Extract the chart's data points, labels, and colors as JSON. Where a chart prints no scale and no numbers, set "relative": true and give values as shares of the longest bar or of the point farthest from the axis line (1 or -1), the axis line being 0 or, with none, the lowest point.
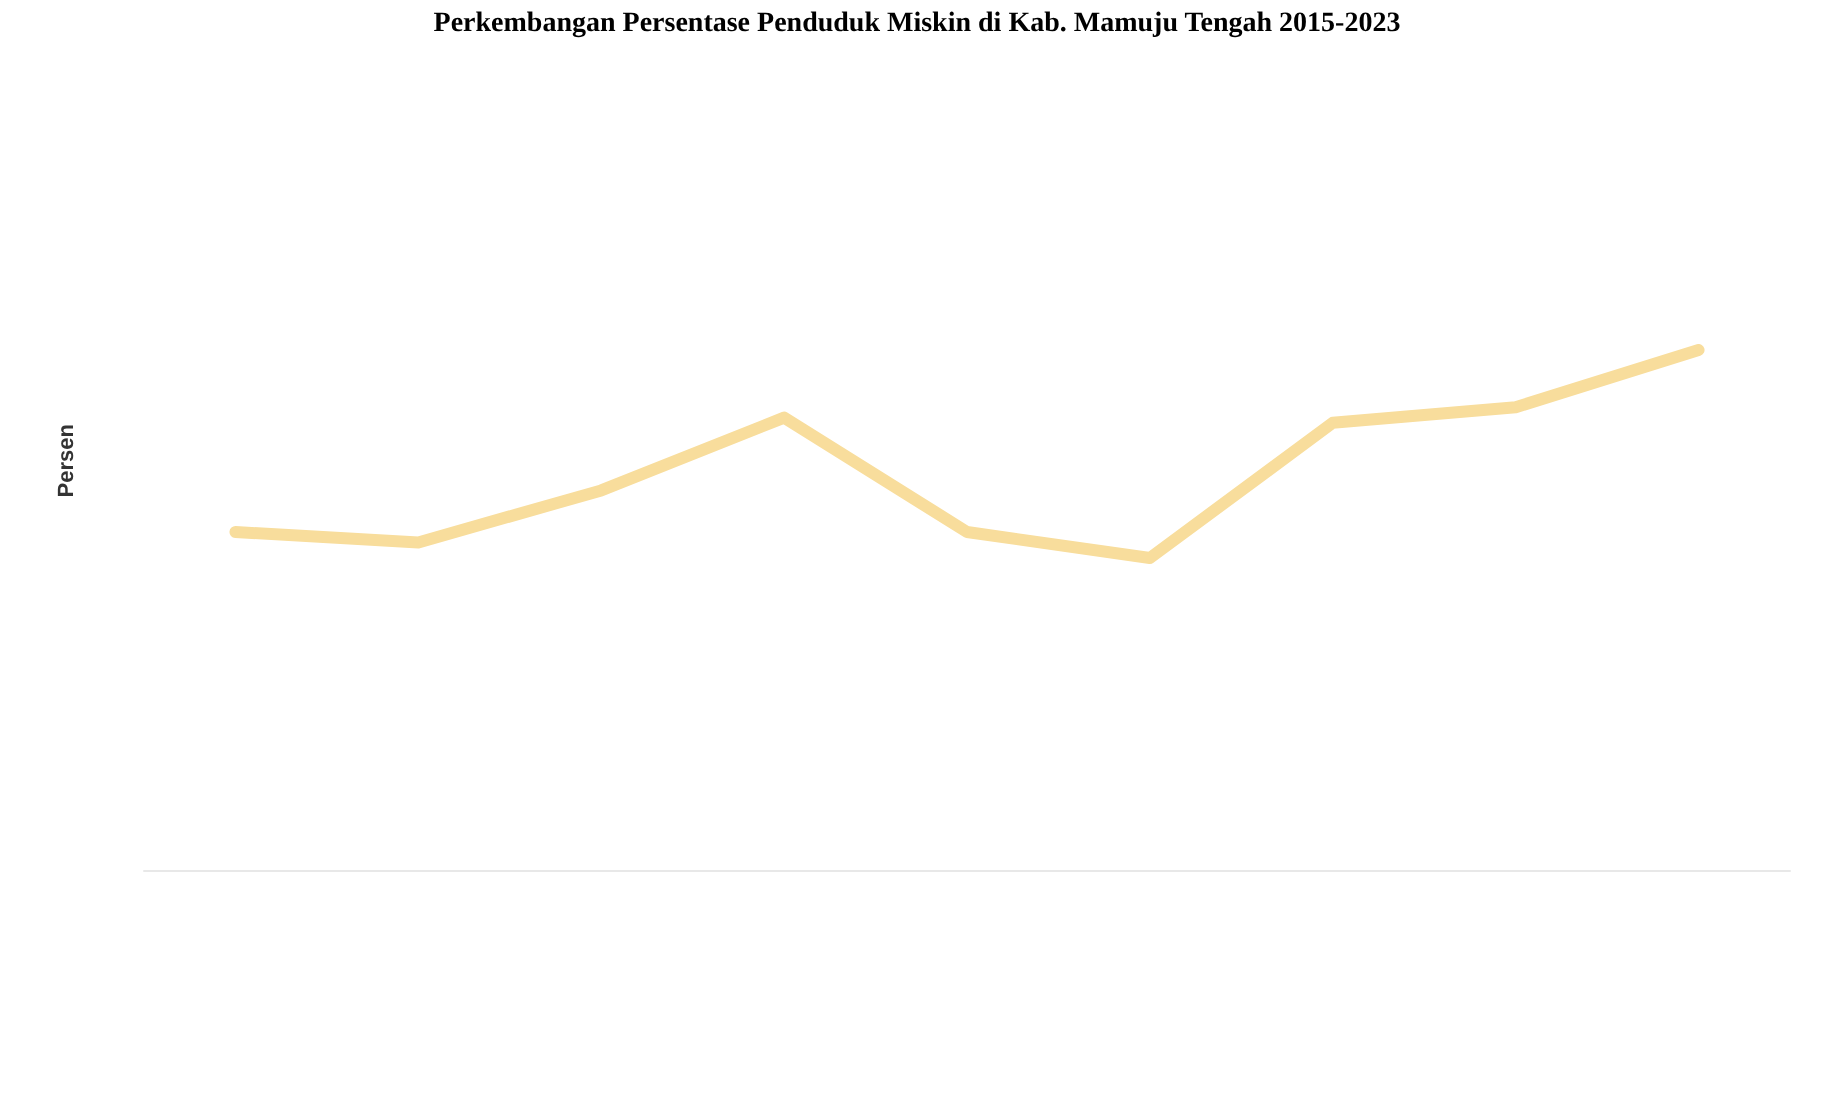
{
  "chart_data": {
    "type": "line",
    "title": "Perkembangan Persentase Penduduk Miskin di Kab. Mamuju Tengah 2015-2023",
    "ylabel": "Persen",
    "categories": [
      null,
      null,
      null,
      null,
      null,
      null,
      null,
      null,
      null
    ],
    "relative": true,
    "series": [
      {
        "color": "#f8dd9c",
        "values": [
          0.65,
          0.63,
          0.73,
          0.87,
          0.65,
          0.6,
          0.86,
          0.89,
          1.0
        ]
      }
    ],
    "marker": "none",
    "line_style": "solid"
  }
}
